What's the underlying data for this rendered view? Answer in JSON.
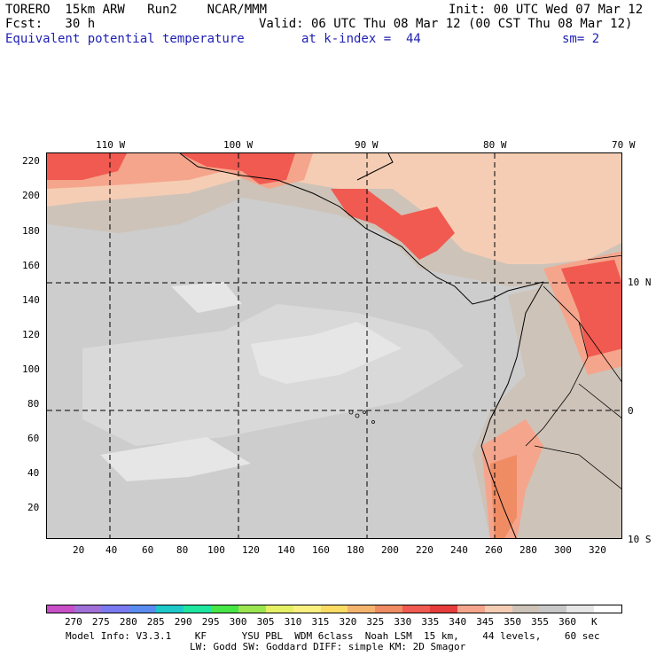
{
  "header": {
    "line1_left": "TORERO  15km ARW   Run2    NCAR/MMM",
    "line1_right": "Init: 00 UTC Wed 07 Mar 12",
    "line2_left": "Fcst:   30 h",
    "line2_right": "Valid: 06 UTC Thu 08 Mar 12 (00 CST Thu 08 Mar 12)",
    "line3_field": "Equivalent potential temperature",
    "line3_level": "at k-index =  44",
    "line3_smooth": "sm= 2"
  },
  "axes": {
    "top_lon_labels": [
      "110 W",
      "100 W",
      "90 W",
      "80 W",
      "70 W"
    ],
    "left_y_labels": [
      "220",
      "200",
      "180",
      "160",
      "140",
      "120",
      "100",
      "80",
      "60",
      "40",
      "20"
    ],
    "bottom_x_labels": [
      "20",
      "40",
      "60",
      "80",
      "100",
      "120",
      "140",
      "160",
      "180",
      "200",
      "220",
      "240",
      "260",
      "280",
      "300",
      "320"
    ],
    "right_lat_labels": [
      "10 N",
      "0",
      "10 S"
    ]
  },
  "colorbar": {
    "labels": [
      "270",
      "275",
      "280",
      "285",
      "290",
      "295",
      "300",
      "305",
      "310",
      "315",
      "320",
      "325",
      "330",
      "335",
      "340",
      "345",
      "350",
      "355",
      "360",
      "K"
    ],
    "colors": [
      "#c84fc8",
      "#a070d8",
      "#7a7af0",
      "#5a8cf0",
      "#1ec8c8",
      "#1ee6a0",
      "#46e646",
      "#9be650",
      "#e6f064",
      "#faf080",
      "#fadc64",
      "#f5b46e",
      "#f08c64",
      "#f05a50",
      "#e63c3c",
      "#f5a58c",
      "#f5cdb4",
      "#cdc3b9",
      "#c8c8c8",
      "#e6e6e6",
      "#ffffff"
    ]
  },
  "footer": {
    "line1": "Model Info: V3.3.1    KF      YSU PBL  WDM 6class  Noah LSM  15 km,    44 levels,    60 sec",
    "line2": "LW: Godd SW: Goddard DIFF: simple KM: 2D Smagor"
  }
}
